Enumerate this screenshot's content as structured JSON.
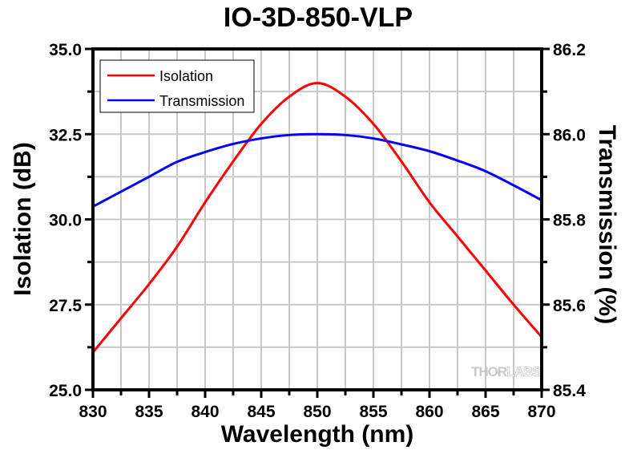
{
  "chart_data": {
    "type": "line",
    "title": "IO-3D-850-VLP",
    "xlabel": "Wavelength (nm)",
    "ylabel": "Isolation (dB)",
    "y2label": "Transmission (%)",
    "xlim": [
      830,
      870
    ],
    "ylim": [
      25.0,
      35.0
    ],
    "y2lim": [
      85.4,
      86.2
    ],
    "xticks": [
      "830",
      "835",
      "840",
      "845",
      "850",
      "855",
      "860",
      "865",
      "870"
    ],
    "xtick_values": [
      830,
      835,
      840,
      845,
      850,
      855,
      860,
      865,
      870
    ],
    "yticks": [
      "25.0",
      "27.5",
      "30.0",
      "32.5",
      "35.0"
    ],
    "ytick_values": [
      25.0,
      27.5,
      30.0,
      32.5,
      35.0
    ],
    "y2ticks": [
      "85.4",
      "85.6",
      "85.8",
      "86.0",
      "86.2"
    ],
    "y2tick_values": [
      85.4,
      85.6,
      85.8,
      86.0,
      86.2
    ],
    "grid": true,
    "legend_position": "top-left",
    "watermark": {
      "left": "THOR",
      "right": "LABS"
    },
    "x": [
      830,
      832.5,
      835,
      837.5,
      840,
      842.5,
      845,
      847.5,
      850,
      852.5,
      855,
      857.5,
      860,
      862.5,
      865,
      867.5,
      870
    ],
    "series": [
      {
        "name": "Isolation",
        "axis": "left",
        "color": "#ff0000",
        "values": [
          26.1,
          27.1,
          28.1,
          29.2,
          30.5,
          31.7,
          32.8,
          33.6,
          34.0,
          33.6,
          32.8,
          31.7,
          30.5,
          29.5,
          28.5,
          27.5,
          26.55
        ]
      },
      {
        "name": "Transmission",
        "axis": "right",
        "color": "#0000ff",
        "values": [
          85.83,
          85.865,
          85.9,
          85.935,
          85.958,
          85.977,
          85.99,
          85.998,
          86.0,
          85.998,
          85.99,
          85.976,
          85.96,
          85.938,
          85.913,
          85.88,
          85.845
        ]
      }
    ]
  }
}
